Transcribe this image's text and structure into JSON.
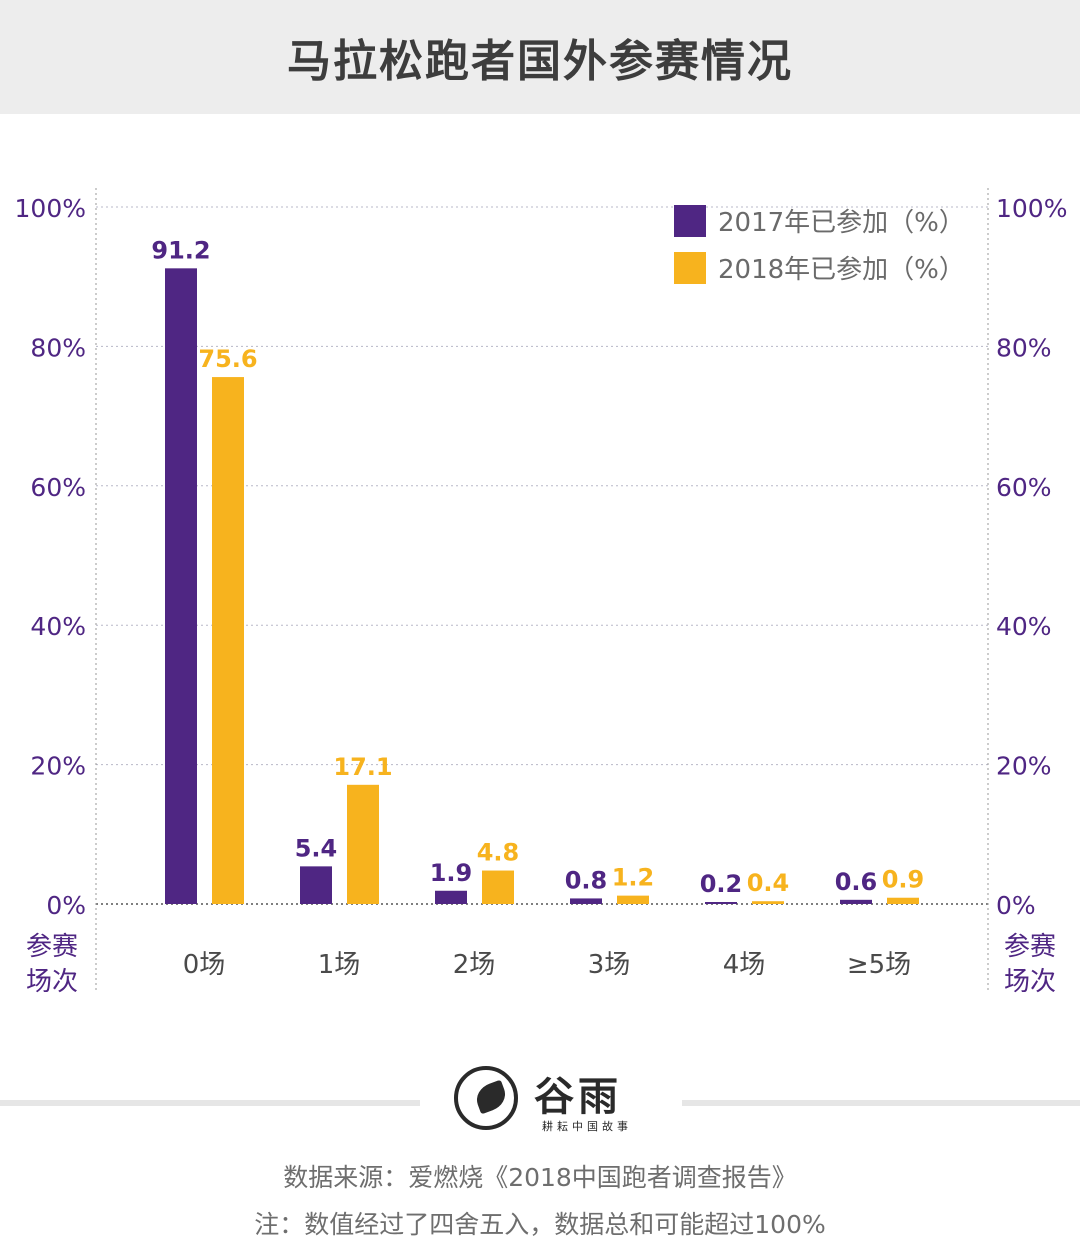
{
  "title": "马拉松跑者国外参赛情况",
  "colors": {
    "series_2017": "#4f2683",
    "series_2018": "#f7b31e",
    "axis_text": "#4f2683"
  },
  "chart_data": {
    "type": "bar",
    "categories": [
      "0场",
      "1场",
      "2场",
      "3场",
      "4场",
      "≥5场"
    ],
    "series": [
      {
        "name": "2017年已参加（%）",
        "values": [
          91.2,
          5.4,
          1.9,
          0.8,
          0.2,
          0.6
        ],
        "labels": [
          "91.2",
          "5.4",
          "1.9",
          "0.8",
          "0.2",
          "0.6"
        ]
      },
      {
        "name": "2018年已参加（%）",
        "values": [
          75.6,
          17.1,
          4.8,
          1.2,
          0.4,
          0.9
        ],
        "labels": [
          "75.6",
          "17.1",
          "4.8",
          "1.2",
          "0.4",
          "0.9"
        ]
      }
    ],
    "yticks": [
      "0%",
      "20%",
      "40%",
      "60%",
      "80%",
      "100%"
    ],
    "ylim": [
      0,
      100
    ],
    "xlabel": "参赛场次",
    "legend_position": "top-right",
    "grid": true
  },
  "footer": {
    "logo_name": "谷雨",
    "logo_subtitle": "耕耘中国故事",
    "source": "数据来源：爱燃烧《2018中国跑者调查报告》",
    "note": "注：数值经过了四舍五入，数据总和可能超过100%"
  }
}
